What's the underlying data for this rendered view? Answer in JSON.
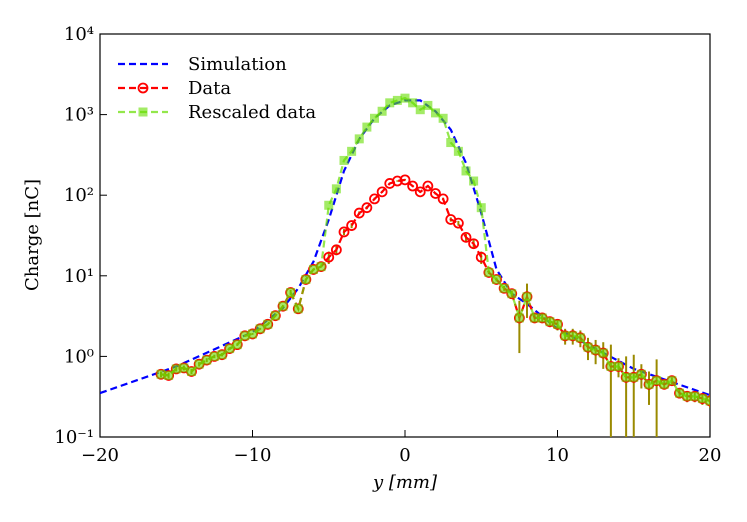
{
  "chart_data": {
    "type": "line",
    "xlabel": "y [mm]",
    "ylabel": "Charge [nC]",
    "log_y": true,
    "legend": "upper left",
    "xlim": [
      -20,
      20
    ],
    "xticks": [
      {
        "value": -20,
        "label": "−20"
      },
      {
        "value": -10,
        "label": "−10"
      },
      0,
      10,
      20
    ],
    "ylim": [
      0.1,
      10000
    ],
    "yticks": [
      {
        "value": 0.1,
        "label": "10⁻¹"
      },
      {
        "value": 1,
        "label": "10⁰"
      },
      {
        "value": 10,
        "label": "10¹"
      },
      {
        "value": 100,
        "label": "10²"
      },
      {
        "value": 1000,
        "label": "10³"
      },
      {
        "value": 10000,
        "label": "10⁴"
      }
    ],
    "series": [
      {
        "name": "Simulation",
        "color": "#0000ff",
        "style": "dashed",
        "x": [
          -20,
          -15,
          -10,
          -8,
          -7,
          -6,
          -5,
          -4,
          -3,
          -2,
          -1,
          0,
          1,
          2,
          3,
          4,
          5,
          6,
          7,
          8,
          10,
          15,
          20
        ],
        "values": [
          0.35,
          0.75,
          2.0,
          4,
          7,
          15,
          50,
          200,
          500,
          900,
          1300,
          1500,
          1500,
          1100,
          650,
          250,
          60,
          12,
          6,
          4.5,
          2.2,
          0.7,
          0.33
        ]
      },
      {
        "name": "Data",
        "color": "#ff0000",
        "style": "dashed",
        "marker": "circle",
        "x": [
          -16,
          -15.5,
          -15,
          -14.5,
          -14,
          -13.5,
          -13,
          -12.5,
          -12,
          -11.5,
          -11,
          -10.5,
          -10,
          -9.5,
          -9,
          -8.5,
          -8,
          -7.5,
          -7,
          -6.5,
          -6,
          -5.5,
          -5,
          -4.5,
          -4,
          -3.5,
          -3,
          -2.5,
          -2,
          -1.5,
          -1,
          -0.5,
          0,
          0.5,
          1,
          1.5,
          2,
          2.5,
          3,
          3.5,
          4,
          4.5,
          5,
          5.5,
          6,
          6.5,
          7,
          7.5,
          8,
          8.5,
          9,
          9.5,
          10,
          10.5,
          11,
          11.5,
          12,
          12.5,
          13,
          13.5,
          14,
          14.5,
          15,
          15.5,
          16,
          16.5,
          17,
          17.5,
          18,
          18.5,
          19,
          19.5,
          20
        ],
        "values": [
          0.6,
          0.58,
          0.7,
          0.72,
          0.65,
          0.8,
          0.9,
          1.0,
          1.05,
          1.25,
          1.4,
          1.8,
          1.9,
          2.2,
          2.5,
          3.2,
          4.2,
          6.2,
          3.9,
          9,
          12,
          13,
          17,
          21,
          35,
          42,
          60,
          70,
          90,
          110,
          140,
          150,
          155,
          130,
          110,
          130,
          105,
          90,
          50,
          45,
          30,
          25,
          17,
          11,
          9,
          7,
          6,
          3,
          5.5,
          3,
          3,
          2.7,
          2.5,
          1.8,
          1.8,
          1.7,
          1.3,
          1.2,
          1.1,
          0.75,
          0.75,
          0.55,
          0.55,
          0.6,
          0.45,
          0.5,
          0.45,
          0.5,
          0.35,
          0.32,
          0.32,
          0.3,
          0.28
        ],
        "errors": [
          0.05,
          0.05,
          0.05,
          0.05,
          0.05,
          0.05,
          0.05,
          0.05,
          0.05,
          0.05,
          0.05,
          0.05,
          0.05,
          0.05,
          0.05,
          0.05,
          0.05,
          0.5,
          0.05,
          0.05,
          0.05,
          0.05,
          3,
          3,
          3,
          3,
          3,
          3,
          3,
          3,
          3,
          3,
          3,
          3,
          3,
          3,
          3,
          3,
          3,
          3,
          3,
          3,
          3,
          0.5,
          0.5,
          0.5,
          0.5,
          1.9,
          2.5,
          0.4,
          0.4,
          0.4,
          0.4,
          0.4,
          0.4,
          0.4,
          0.4,
          0.4,
          0.4,
          0.65,
          0.2,
          0.45,
          0.5,
          0.2,
          0.2,
          0.42,
          0.05,
          0.05,
          0.05,
          0.05,
          0.05,
          0.05,
          0.05
        ]
      },
      {
        "name": "Rescaled data",
        "color": "#66dd00",
        "style": "dashed",
        "marker": "square",
        "x": [
          -16,
          -15.5,
          -15,
          -14.5,
          -14,
          -13.5,
          -13,
          -12.5,
          -12,
          -11.5,
          -11,
          -10.5,
          -10,
          -9.5,
          -9,
          -8.5,
          -8,
          -7.5,
          -7,
          -6.5,
          -6,
          -5.5,
          -5,
          -4.5,
          -4,
          -3.5,
          -3,
          -2.5,
          -2,
          -1.5,
          -1,
          -0.5,
          0,
          0.5,
          1,
          1.5,
          2,
          2.5,
          3,
          3.5,
          4,
          4.5,
          5,
          5.5,
          6,
          6.5,
          7,
          7.5,
          8,
          8.5,
          9,
          9.5,
          10,
          10.5,
          11,
          11.5,
          12,
          12.5,
          13,
          13.5,
          14,
          14.5,
          15,
          15.5,
          16,
          16.5,
          17,
          17.5,
          18,
          18.5,
          19,
          19.5,
          20
        ],
        "values": [
          0.6,
          0.58,
          0.7,
          0.72,
          0.65,
          0.8,
          0.9,
          1.0,
          1.05,
          1.25,
          1.4,
          1.8,
          1.9,
          2.2,
          2.5,
          3.2,
          4.2,
          6.2,
          3.9,
          9,
          12,
          13,
          75,
          120,
          270,
          350,
          500,
          700,
          900,
          1100,
          1400,
          1500,
          1600,
          1400,
          1150,
          1300,
          1050,
          900,
          450,
          350,
          200,
          150,
          70,
          11,
          9,
          7,
          6,
          3,
          5.5,
          3,
          3,
          2.7,
          2.5,
          1.8,
          1.8,
          1.7,
          1.3,
          1.2,
          1.1,
          0.75,
          0.75,
          0.55,
          0.55,
          0.6,
          0.45,
          0.5,
          0.45,
          0.5,
          0.35,
          0.32,
          0.32,
          0.3,
          0.28
        ]
      }
    ]
  }
}
